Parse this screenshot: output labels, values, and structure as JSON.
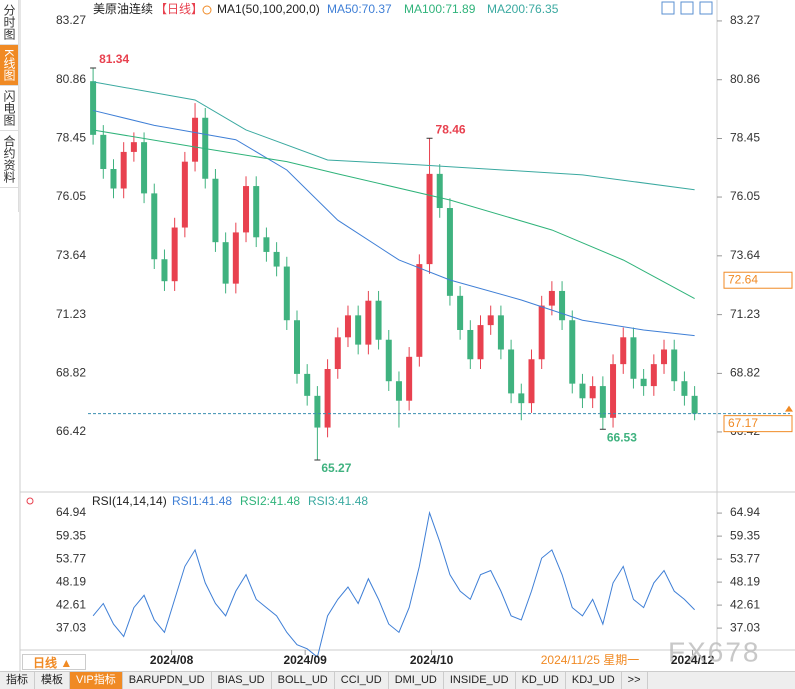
{
  "sidebar_tabs": [
    "分时图",
    "K线图",
    "闪电图",
    "合约资料"
  ],
  "chart_data": [
    {
      "type": "candlestick",
      "title": "美原油连续",
      "period": "【日线】",
      "indicator": "MA1(50,100,200,0)",
      "open": [
        80.8,
        78.6,
        77.2,
        76.4,
        77.9,
        78.3,
        76.2,
        73.5,
        72.6,
        74.8,
        77.5,
        79.3,
        76.8,
        74.2,
        72.5,
        74.6,
        76.5,
        74.4,
        73.8,
        73.2,
        71.0,
        68.8,
        67.9,
        66.6,
        69.0,
        70.3,
        71.2,
        70.0,
        71.8,
        70.2,
        68.5,
        67.7,
        69.5,
        73.3,
        77.0,
        75.6,
        72.0,
        70.6,
        69.4,
        70.8,
        71.2,
        69.8,
        68.0,
        67.6,
        69.4,
        71.6,
        72.2,
        71.0,
        68.4,
        67.8,
        68.3,
        67.0,
        69.2,
        70.3,
        68.6,
        68.3,
        69.2,
        69.8,
        68.5,
        67.9
      ],
      "high": [
        81.34,
        79.0,
        77.6,
        78.3,
        78.7,
        78.7,
        76.6,
        73.9,
        75.2,
        77.9,
        79.9,
        79.7,
        77.2,
        74.6,
        75.0,
        76.9,
        76.9,
        74.8,
        74.2,
        73.6,
        71.4,
        69.2,
        68.3,
        69.4,
        70.7,
        71.6,
        71.6,
        72.2,
        72.2,
        70.6,
        68.9,
        69.9,
        73.7,
        78.46,
        77.4,
        76.0,
        72.4,
        71.0,
        71.2,
        71.6,
        71.6,
        70.2,
        68.4,
        69.8,
        72.0,
        72.6,
        72.6,
        71.4,
        68.8,
        68.7,
        68.7,
        69.6,
        70.7,
        70.7,
        69.0,
        69.6,
        70.2,
        70.2,
        68.9,
        68.3
      ],
      "low": [
        78.2,
        76.8,
        76.0,
        76.0,
        77.5,
        75.8,
        73.1,
        72.2,
        72.2,
        74.4,
        77.1,
        76.4,
        73.8,
        72.1,
        72.1,
        74.2,
        74.0,
        73.4,
        72.8,
        70.6,
        68.4,
        67.5,
        65.27,
        66.2,
        68.6,
        69.9,
        69.6,
        69.6,
        69.8,
        68.1,
        66.6,
        67.3,
        69.1,
        72.9,
        75.2,
        71.6,
        70.2,
        69.0,
        69.0,
        70.4,
        69.4,
        67.6,
        66.9,
        67.2,
        69.0,
        71.2,
        70.6,
        68.0,
        67.4,
        67.4,
        66.53,
        66.6,
        68.8,
        68.2,
        67.9,
        67.9,
        68.8,
        68.1,
        67.5,
        66.9
      ],
      "close": [
        78.6,
        77.2,
        76.4,
        77.9,
        78.3,
        76.2,
        73.5,
        72.6,
        74.8,
        77.5,
        79.3,
        76.8,
        74.2,
        72.5,
        74.6,
        76.5,
        74.4,
        73.8,
        73.2,
        71.0,
        68.8,
        67.9,
        66.6,
        69.0,
        70.3,
        71.2,
        70.0,
        71.8,
        70.2,
        68.5,
        67.7,
        69.5,
        73.3,
        77.0,
        75.6,
        72.0,
        70.6,
        69.4,
        70.8,
        71.2,
        69.8,
        68.0,
        67.6,
        69.4,
        71.6,
        72.2,
        71.0,
        68.4,
        67.8,
        68.3,
        67.0,
        69.2,
        70.3,
        68.6,
        68.3,
        69.2,
        69.8,
        68.5,
        67.9,
        67.17
      ],
      "up_color": "#e8414f",
      "down_color": "#3fb27f",
      "annotated_highs": [
        0,
        33
      ],
      "annotated_lows": [
        22,
        50
      ],
      "xlim": [
        -0.5,
        61
      ],
      "ylim": [
        64.04,
        83.8
      ],
      "yticks": [
        83.27,
        80.86,
        78.45,
        76.05,
        73.64,
        71.23,
        68.82,
        66.42
      ],
      "lines": [
        {
          "name": "MA50:70.37",
          "color": "#3f7fd6",
          "x": [
            0,
            6,
            14,
            19,
            24,
            30,
            35,
            42,
            48,
            54,
            59
          ],
          "values": [
            79.6,
            78.99,
            78.4,
            77.16,
            75.1,
            73.47,
            72.65,
            71.83,
            71.0,
            70.6,
            70.37
          ]
        },
        {
          "name": "MA100:71.89",
          "color": "#2fb37a",
          "x": [
            0,
            10,
            19,
            24,
            35,
            45,
            52,
            59
          ],
          "values": [
            78.8,
            78.1,
            77.5,
            77.0,
            75.93,
            74.7,
            73.47,
            71.89
          ]
        },
        {
          "name": "MA200:76.35",
          "color": "#3aa9a0",
          "x": [
            0,
            10,
            15,
            23,
            32,
            48,
            59
          ],
          "values": [
            80.77,
            80.03,
            78.8,
            77.57,
            77.37,
            76.96,
            76.35
          ]
        }
      ],
      "last_price": 67.17,
      "cursor_price": 72.64
    },
    {
      "type": "line",
      "title": "RSI(14,14,14)",
      "legend": [
        "RSI1:41.48",
        "RSI2:41.48",
        "RSI3:41.48"
      ],
      "legend_colors": [
        "#3f7fd6",
        "#2fb37a",
        "#3aa9a0"
      ],
      "color": "#3f7fd6",
      "values": [
        40,
        43,
        38,
        35,
        42,
        45,
        39,
        36,
        44,
        52,
        56,
        48,
        43,
        40,
        46,
        50,
        44,
        42,
        40,
        36,
        33,
        32,
        30,
        40,
        44,
        47,
        43,
        49,
        44,
        38,
        36,
        42,
        52,
        65,
        58,
        50,
        46,
        44,
        50,
        51,
        46,
        40,
        39,
        46,
        54,
        56,
        50,
        42,
        40,
        44,
        38,
        48,
        52,
        44,
        42,
        48,
        51,
        46,
        44,
        41.48
      ],
      "xlim": [
        -0.5,
        61
      ],
      "ylim": [
        32.2,
        66.9
      ],
      "yticks": [
        64.94,
        59.35,
        53.77,
        48.19,
        42.61,
        37.03
      ],
      "xticks": [
        {
          "value": 7.7,
          "label": "2024/08"
        },
        {
          "value": 20.8,
          "label": "2024/09"
        },
        {
          "value": 33.2,
          "label": "2024/10"
        },
        {
          "value": 58.8,
          "label": "2024/12"
        }
      ],
      "cursor_date": "2024/11/25 星期一"
    }
  ],
  "period_button": "日线",
  "watermark": "FX678",
  "footer_tabs": [
    "指标",
    "模板",
    "VIP指标",
    "BARUPDN_UD",
    "BIAS_UD",
    "BOLL_UD",
    "CCI_UD",
    "DMI_UD",
    "INSIDE_UD",
    "KD_UD",
    "KDJ_UD",
    ">>"
  ]
}
